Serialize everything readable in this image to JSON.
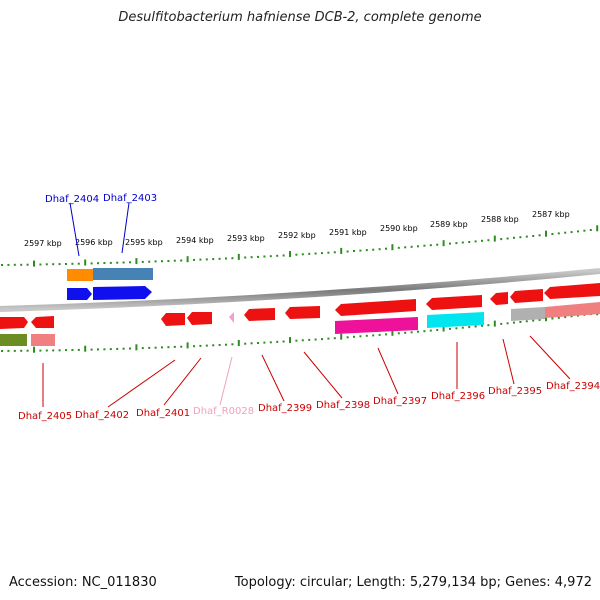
{
  "title": "Desulfitobacterium hafniense DCB-2, complete genome",
  "footer": {
    "accession": "Accession: NC_011830",
    "topology": "Topology: circular; Length: 5,279,134 bp; Genes: 4,972"
  },
  "colors": {
    "tick": "#2e8b22",
    "backbone": "#808080"
  },
  "kbp_labels": [
    {
      "text": "2597 kbp"
    },
    {
      "text": "2596 kbp"
    },
    {
      "text": "2595 kbp"
    },
    {
      "text": "2594 kbp"
    },
    {
      "text": "2593 kbp"
    },
    {
      "text": "2592 kbp"
    },
    {
      "text": "2591 kbp"
    },
    {
      "text": "2590 kbp"
    },
    {
      "text": "2589 kbp"
    },
    {
      "text": "2588 kbp"
    },
    {
      "text": "2587 kbp"
    }
  ],
  "gene_labels": [
    {
      "text": "Dhaf_2404",
      "color": "#0000cc"
    },
    {
      "text": "Dhaf_2403",
      "color": "#0000cc"
    },
    {
      "text": "Dhaf_2405",
      "color": "#cc0000"
    },
    {
      "text": "Dhaf_2402",
      "color": "#cc0000"
    },
    {
      "text": "Dhaf_2401",
      "color": "#cc0000"
    },
    {
      "text": "Dhaf_R0028",
      "color": "#f2a0c0"
    },
    {
      "text": "Dhaf_2399",
      "color": "#cc0000"
    },
    {
      "text": "Dhaf_2398",
      "color": "#cc0000"
    },
    {
      "text": "Dhaf_2397",
      "color": "#cc0000"
    },
    {
      "text": "Dhaf_2396",
      "color": "#cc0000"
    },
    {
      "text": "Dhaf_2395",
      "color": "#cc0000"
    },
    {
      "text": "Dhaf_2394",
      "color": "#cc0000"
    }
  ],
  "genes": [
    {
      "id": "g2405",
      "strand": "-",
      "color": "#ee1111",
      "cog": "#6b8e23"
    },
    {
      "id": "g2405b",
      "strand": "-",
      "color": "#ee1111",
      "cog": "#f08080"
    },
    {
      "id": "g2404",
      "strand": "+",
      "color": "#1010ee",
      "cog": "#ff8c00"
    },
    {
      "id": "g2403",
      "strand": "+",
      "color": "#1010ee",
      "cog": "#4682b4"
    },
    {
      "id": "g2402",
      "strand": "-",
      "color": "#ee1111"
    },
    {
      "id": "g2401",
      "strand": "-",
      "color": "#ee1111"
    },
    {
      "id": "gR0028",
      "strand": "-",
      "color": "#f0a0c8"
    },
    {
      "id": "g2399",
      "strand": "-",
      "color": "#ee1111"
    },
    {
      "id": "g2398",
      "strand": "-",
      "color": "#ee1111"
    },
    {
      "id": "g2397",
      "strand": "-",
      "color": "#ee1111",
      "cog": "#ee1199"
    },
    {
      "id": "g2396",
      "strand": "-",
      "color": "#ee1111",
      "cog": "#00e5ee"
    },
    {
      "id": "g2395",
      "strand": "-",
      "color": "#ee1111"
    },
    {
      "id": "g2394",
      "strand": "-",
      "color": "#ee1111",
      "cog": "#b0b0b0"
    },
    {
      "id": "g2393",
      "strand": "-",
      "color": "#ee1111",
      "cog": "#f08080"
    }
  ]
}
